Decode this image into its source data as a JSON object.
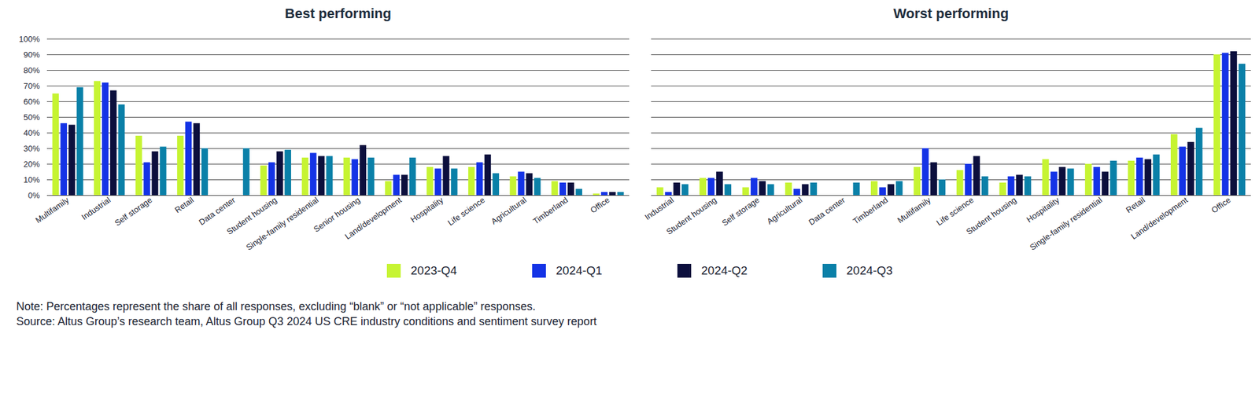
{
  "chart_data": [
    {
      "type": "bar",
      "title": "Best performing",
      "categories": [
        "Multifamily",
        "Industrial",
        "Self storage",
        "Retail",
        "Data center",
        "Student housing",
        "Single-family residential",
        "Senior housing",
        "Land/development",
        "Hospitality",
        "Life science",
        "Agricultural",
        "Timberland",
        "Office"
      ],
      "series": [
        {
          "name": "2023-Q4",
          "color": "#c6f432",
          "values": [
            65,
            73,
            38,
            38,
            null,
            19,
            24,
            24,
            9,
            18,
            18,
            12,
            9,
            1
          ]
        },
        {
          "name": "2024-Q1",
          "color": "#1433e6",
          "values": [
            46,
            72,
            21,
            47,
            null,
            21,
            27,
            23,
            13,
            17,
            21,
            15,
            8,
            2
          ]
        },
        {
          "name": "2024-Q2",
          "color": "#0c0f3d",
          "values": [
            45,
            67,
            28,
            46,
            null,
            28,
            25,
            32,
            13,
            25,
            26,
            14,
            8,
            2
          ]
        },
        {
          "name": "2024-Q3",
          "color": "#0a80a8",
          "values": [
            69,
            58,
            31,
            30,
            30,
            29,
            25,
            24,
            24,
            17,
            14,
            11,
            4,
            2
          ]
        }
      ],
      "ylim": [
        0,
        100
      ],
      "yticks": [
        {
          "value": 0,
          "label": "0%"
        },
        {
          "value": 10,
          "label": "10%"
        },
        {
          "value": 20,
          "label": "20%"
        },
        {
          "value": 30,
          "label": "30%"
        },
        {
          "value": 40,
          "label": "40%"
        },
        {
          "value": 50,
          "label": "50%"
        },
        {
          "value": 60,
          "label": "60%"
        },
        {
          "value": 70,
          "label": "70%"
        },
        {
          "value": 80,
          "label": "80%"
        },
        {
          "value": 90,
          "label": "90%"
        },
        {
          "value": 100,
          "label": "100%"
        }
      ],
      "grid": true,
      "legend": "bottom"
    },
    {
      "type": "bar",
      "title": "Worst performing",
      "categories": [
        "Industrial",
        "Student housing",
        "Self storage",
        "Agricultural",
        "Data center",
        "Timberland",
        "Multifamily",
        "Life science",
        "Student housing",
        "Hospitality",
        "Single-family residential",
        "Retail",
        "Land/development",
        "Office"
      ],
      "series": [
        {
          "name": "2023-Q4",
          "color": "#c6f432",
          "values": [
            5,
            11,
            5,
            8,
            null,
            9,
            18,
            16,
            8,
            23,
            20,
            22,
            39,
            90
          ]
        },
        {
          "name": "2024-Q1",
          "color": "#1433e6",
          "values": [
            2,
            11,
            11,
            4,
            null,
            5,
            30,
            20,
            12,
            15,
            18,
            24,
            31,
            91
          ]
        },
        {
          "name": "2024-Q2",
          "color": "#0c0f3d",
          "values": [
            8,
            15,
            9,
            7,
            null,
            7,
            21,
            25,
            13,
            18,
            15,
            23,
            34,
            92
          ]
        },
        {
          "name": "2024-Q3",
          "color": "#0a80a8",
          "values": [
            7,
            7,
            7,
            8,
            8,
            9,
            10,
            12,
            12,
            17,
            22,
            26,
            43,
            84
          ]
        }
      ],
      "ylim": [
        0,
        100
      ],
      "yticks": [
        0,
        10,
        20,
        30,
        40,
        50,
        60,
        70,
        80,
        90,
        100
      ],
      "grid": true,
      "legend": "bottom",
      "tick_labels": "x"
    }
  ],
  "notes": [
    "Note: Percentages represent the share of all responses, excluding “blank” or “not applicable” responses.",
    "Source: Altus Group’s research team, Altus Group Q3 2024 US CRE industry conditions and sentiment survey report"
  ]
}
